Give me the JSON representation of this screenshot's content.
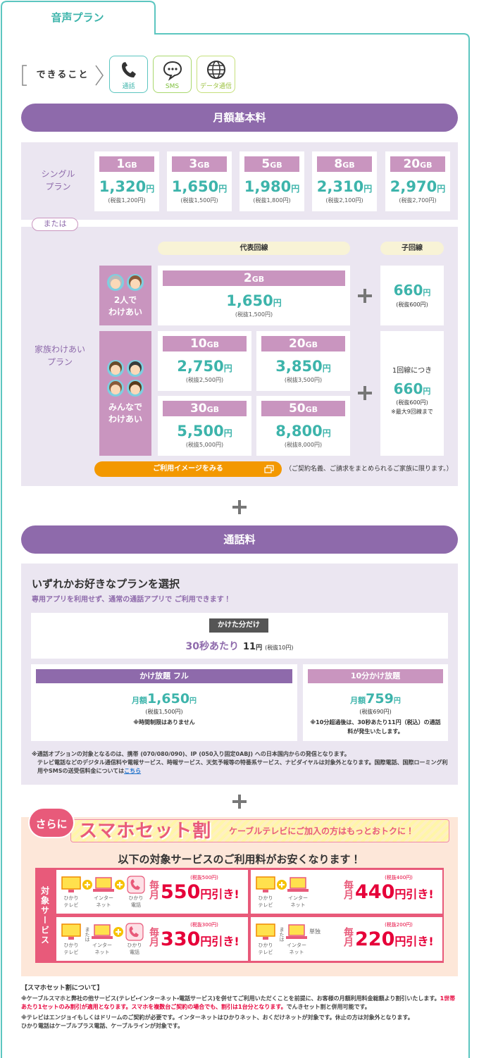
{
  "tab_title": "音声プラン",
  "features": {
    "label": "できること",
    "items": [
      "通話",
      "SMS",
      "データ通信"
    ]
  },
  "basic_fee": {
    "heading": "月額基本料",
    "single": {
      "label": "シングル\nプラン",
      "plans": [
        {
          "data": "1",
          "unit": "GB",
          "price": "1,320",
          "yen": "円",
          "tax": "(税抜1,200円)"
        },
        {
          "data": "3",
          "unit": "GB",
          "price": "1,650",
          "yen": "円",
          "tax": "(税抜1,500円)"
        },
        {
          "data": "5",
          "unit": "GB",
          "price": "1,980",
          "yen": "円",
          "tax": "(税抜1,800円)"
        },
        {
          "data": "8",
          "unit": "GB",
          "price": "2,310",
          "yen": "円",
          "tax": "(税抜2,100円)"
        },
        {
          "data": "20",
          "unit": "GB",
          "price": "2,970",
          "yen": "円",
          "tax": "(税抜2,700円)"
        }
      ]
    },
    "or_label": "または",
    "family": {
      "label": "家族わけあい\nプラン",
      "main_line": "代表回線",
      "sub_line": "子回線",
      "groups": [
        {
          "label": "2人で\nわけあい",
          "plans": [
            {
              "data": "2",
              "unit": "GB",
              "price": "1,650",
              "yen": "円",
              "tax": "(税抜1,500円)"
            }
          ],
          "sub": {
            "price": "660",
            "yen": "円",
            "tax": "(税抜600円)"
          }
        },
        {
          "label": "みんなで\nわけあい",
          "plans": [
            {
              "data": "10",
              "unit": "GB",
              "price": "2,750",
              "yen": "円",
              "tax": "(税抜2,500円)"
            },
            {
              "data": "20",
              "unit": "GB",
              "price": "3,850",
              "yen": "円",
              "tax": "(税抜3,500円)"
            },
            {
              "data": "30",
              "unit": "GB",
              "price": "5,500",
              "yen": "円",
              "tax": "(税抜5,000円)"
            },
            {
              "data": "50",
              "unit": "GB",
              "price": "8,800",
              "yen": "円",
              "tax": "(税抜8,000円)"
            }
          ],
          "sub": {
            "lead": "1回線につき",
            "price": "660",
            "yen": "円",
            "tax": "(税抜600円)",
            "note": "※最大9回線まで"
          }
        }
      ],
      "button": "ご利用イメージをみる",
      "note": "（ご契約名義、ご請求をまとめられるご家族に限ります。）"
    }
  },
  "call_fee": {
    "heading": "通話料",
    "title": "いずれかお好きなプランを選択",
    "subtitle": "専用アプリを利用せず、通常の通話アプリで ご利用できます！",
    "pay_per_use": {
      "label": "かけた分だけ",
      "prefix": "30秒あたり",
      "price": "11",
      "yen": "円",
      "tax": "(税抜10円)"
    },
    "plans": [
      {
        "label": "かけ放題 フル",
        "prefix": "月額",
        "price": "1,650",
        "yen": "円",
        "tax": "(税抜1,500円)",
        "note": "※時間制限はありません"
      },
      {
        "label": "10分かけ放題",
        "prefix": "月額",
        "price": "759",
        "yen": "円",
        "tax": "(税抜690円)",
        "note": "※10分超過後は、30秒あたり11円（税込）の通話料が発生いたします。"
      }
    ],
    "notes": [
      "※通話オプションの対象となるのは、携帯 (070/080/090)、IP (050入り固定0ABJ) への日本国内からの発信となります。",
      "テレビ電話などのデジタル通信料や電報サービス、時報サービス、天気予報等の特番系サービス、ナビダイヤルは対象外となります。国際電話、国際ローミング利用やSMSの送受信料金については"
    ],
    "link": "こちら"
  },
  "set_discount": {
    "badge": "さらに",
    "title": "スマホセット割",
    "tagline": "ケーブルテレビにご加入の方はもっとおトクに！",
    "lead": "以下の対象サービスのご利用料がお安くなります！",
    "side_label": "対象サービス",
    "combos": [
      {
        "services": [
          "ひかり\nテレビ",
          "インター\nネット",
          "ひかり\n電話"
        ],
        "per_month": "毎月",
        "amount": "550",
        "unit": "円引き!",
        "tax": "(税抜500円)"
      },
      {
        "services": [
          "ひかり\nテレビ",
          "インター\nネット"
        ],
        "per_month": "毎月",
        "amount": "440",
        "unit": "円引き!",
        "tax": "(税抜400円)"
      },
      {
        "services": [
          "ひかり\nテレビ",
          "インター\nネット",
          "ひかり\n電話"
        ],
        "or_label": "または",
        "per_month": "毎月",
        "amount": "330",
        "unit": "円引き!",
        "tax": "(税抜300円)"
      },
      {
        "services": [
          "ひかり\nテレビ",
          "インター\nネット"
        ],
        "or_label": "または",
        "suffix": "単独",
        "per_month": "毎月",
        "amount": "220",
        "unit": "円引き!",
        "tax": "(税抜200円)"
      }
    ],
    "about": {
      "title": "【スマホセット割について】",
      "notes": [
        [
          {
            "text": "※ケーブルスマホと弊社の他サービス(テレビ・インターネット・電話サービス)を併せてご利用いただくことを前提に、お客様の月額利用料金総額より割引いたします。"
          },
          {
            "text": "1世帯あたり1セットのみ割引が適用となります。スマホを複数台ご契約の場合でも、割引は1台分となります。",
            "highlight": true
          },
          {
            "text": "でんきセット割と併用可能です。"
          }
        ],
        [
          {
            "text": "※テレビはエンジョイもしくはドリームのご契約が必要です。インターネットはひかりネット、おくだけネットが対象です。休止の方は対象外となります。"
          },
          {
            "text": "\nひかり電話はケーブルプラス電話、ケーブルラインが対象です。"
          }
        ]
      ]
    }
  }
}
